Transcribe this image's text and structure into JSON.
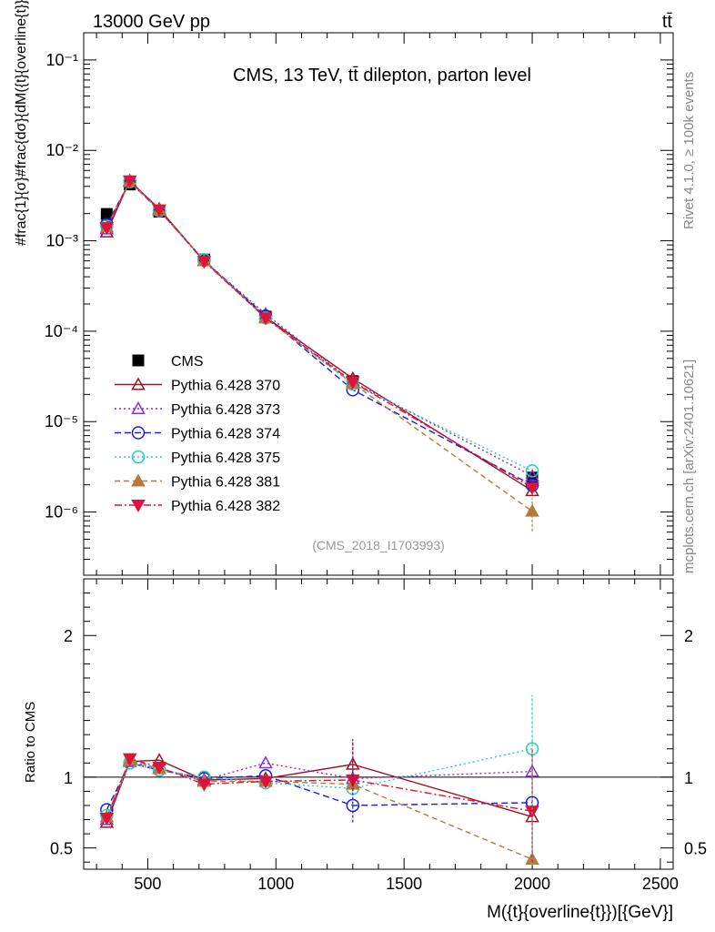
{
  "header": {
    "left": "13000 GeV pp",
    "right": "tt̄"
  },
  "side_labels": {
    "rivet": "Rivet 4.1.0, ≥ 100k events",
    "mcplots": "mcplots.cern.ch [arXiv:2401.10621]"
  },
  "chart_data": [
    {
      "type": "line",
      "panel": "main",
      "title": "CMS, 13 TeV, tt̄ dilepton, parton level",
      "watermark": "(CMS_2018_I1703993)",
      "ylabel": "#frac{1}{σ}#frac{dσ}{dM({t}{overline{t}})}[{GeV}^{-1}]",
      "yscale": "log",
      "ylim": [
        2e-07,
        0.2
      ],
      "xlim": [
        250,
        2550
      ],
      "y_tick_labels": [
        "10⁻⁶",
        "10⁻⁵",
        "10⁻⁴",
        "10⁻³",
        "10⁻²",
        "10⁻¹"
      ],
      "x": [
        340,
        430,
        545,
        720,
        960,
        1300,
        2000
      ],
      "legend_position": "left-middle",
      "series": [
        {
          "name": "CMS",
          "color": "#000000",
          "marker": "square",
          "style": "points",
          "values": [
            0.00198,
            0.0042,
            0.0021,
            0.00062,
            0.000145,
            2.8e-05,
            2.4e-06
          ]
        },
        {
          "name": "Pythia 6.428 370",
          "color": "#a01020",
          "marker": "triangle-open",
          "dash": "",
          "values": [
            0.00125,
            0.0046,
            0.00225,
            0.0006,
            0.000143,
            3e-05,
            1.72e-06
          ]
        },
        {
          "name": "Pythia 6.428 373",
          "color": "#8a2be2",
          "marker": "triangle-open",
          "dash": "2,3",
          "values": [
            0.00135,
            0.0046,
            0.0022,
            0.0006,
            0.000155,
            2.75e-05,
            2.5e-06
          ]
        },
        {
          "name": "Pythia 6.428 374",
          "color": "#1a1add",
          "marker": "circle-open",
          "dash": "7,4",
          "values": [
            0.00152,
            0.0045,
            0.00215,
            0.00061,
            0.000147,
            2.25e-05,
            1.98e-06
          ]
        },
        {
          "name": "Pythia 6.428 375",
          "color": "#20d0c0",
          "marker": "circle-open",
          "dash": "2,3",
          "values": [
            0.00145,
            0.0045,
            0.00215,
            0.00062,
            0.00014,
            2.6e-05,
            2.85e-06
          ]
        },
        {
          "name": "Pythia 6.428 381",
          "color": "#b87838",
          "marker": "triangle-filled",
          "dash": "6,4",
          "values": [
            0.00142,
            0.0045,
            0.00218,
            0.0006,
            0.00014,
            2.65e-05,
            1.02e-06
          ]
        },
        {
          "name": "Pythia 6.428 382",
          "color": "#dc143c",
          "marker": "triangle-down-filled",
          "dash": "8,3,2,3",
          "values": [
            0.0014,
            0.0046,
            0.0022,
            0.00059,
            0.00014,
            2.75e-05,
            1.85e-06
          ]
        }
      ]
    },
    {
      "type": "line",
      "panel": "ratio",
      "ylabel": "Ratio to CMS",
      "xlabel": "M({t}{overline{t}})[{GeV}]",
      "ylim": [
        0.35,
        2.4
      ],
      "xlim": [
        250,
        2550
      ],
      "y_tick_labels": [
        "0.5",
        "1",
        "2"
      ],
      "x_tick_labels": [
        "500",
        "1000",
        "1500",
        "2000",
        "2500"
      ],
      "x": [
        340,
        430,
        545,
        720,
        960,
        1300,
        2000
      ],
      "series": [
        {
          "name": "Pythia 6.428 370",
          "values": [
            0.68,
            1.11,
            1.12,
            0.98,
            0.99,
            1.09,
            0.72
          ]
        },
        {
          "name": "Pythia 6.428 373",
          "values": [
            0.7,
            1.11,
            1.06,
            0.98,
            1.1,
            0.99,
            1.04
          ]
        },
        {
          "name": "Pythia 6.428 374",
          "values": [
            0.77,
            1.1,
            1.05,
            0.99,
            1.01,
            0.8,
            0.82
          ]
        },
        {
          "name": "Pythia 6.428 375",
          "values": [
            0.73,
            1.1,
            1.05,
            1.0,
            0.96,
            0.92,
            1.2
          ]
        },
        {
          "name": "Pythia 6.428 381",
          "values": [
            0.72,
            1.12,
            1.06,
            0.97,
            0.97,
            0.95,
            0.42
          ]
        },
        {
          "name": "Pythia 6.428 382",
          "values": [
            0.71,
            1.13,
            1.07,
            0.95,
            0.97,
            0.98,
            0.76
          ]
        }
      ]
    }
  ]
}
